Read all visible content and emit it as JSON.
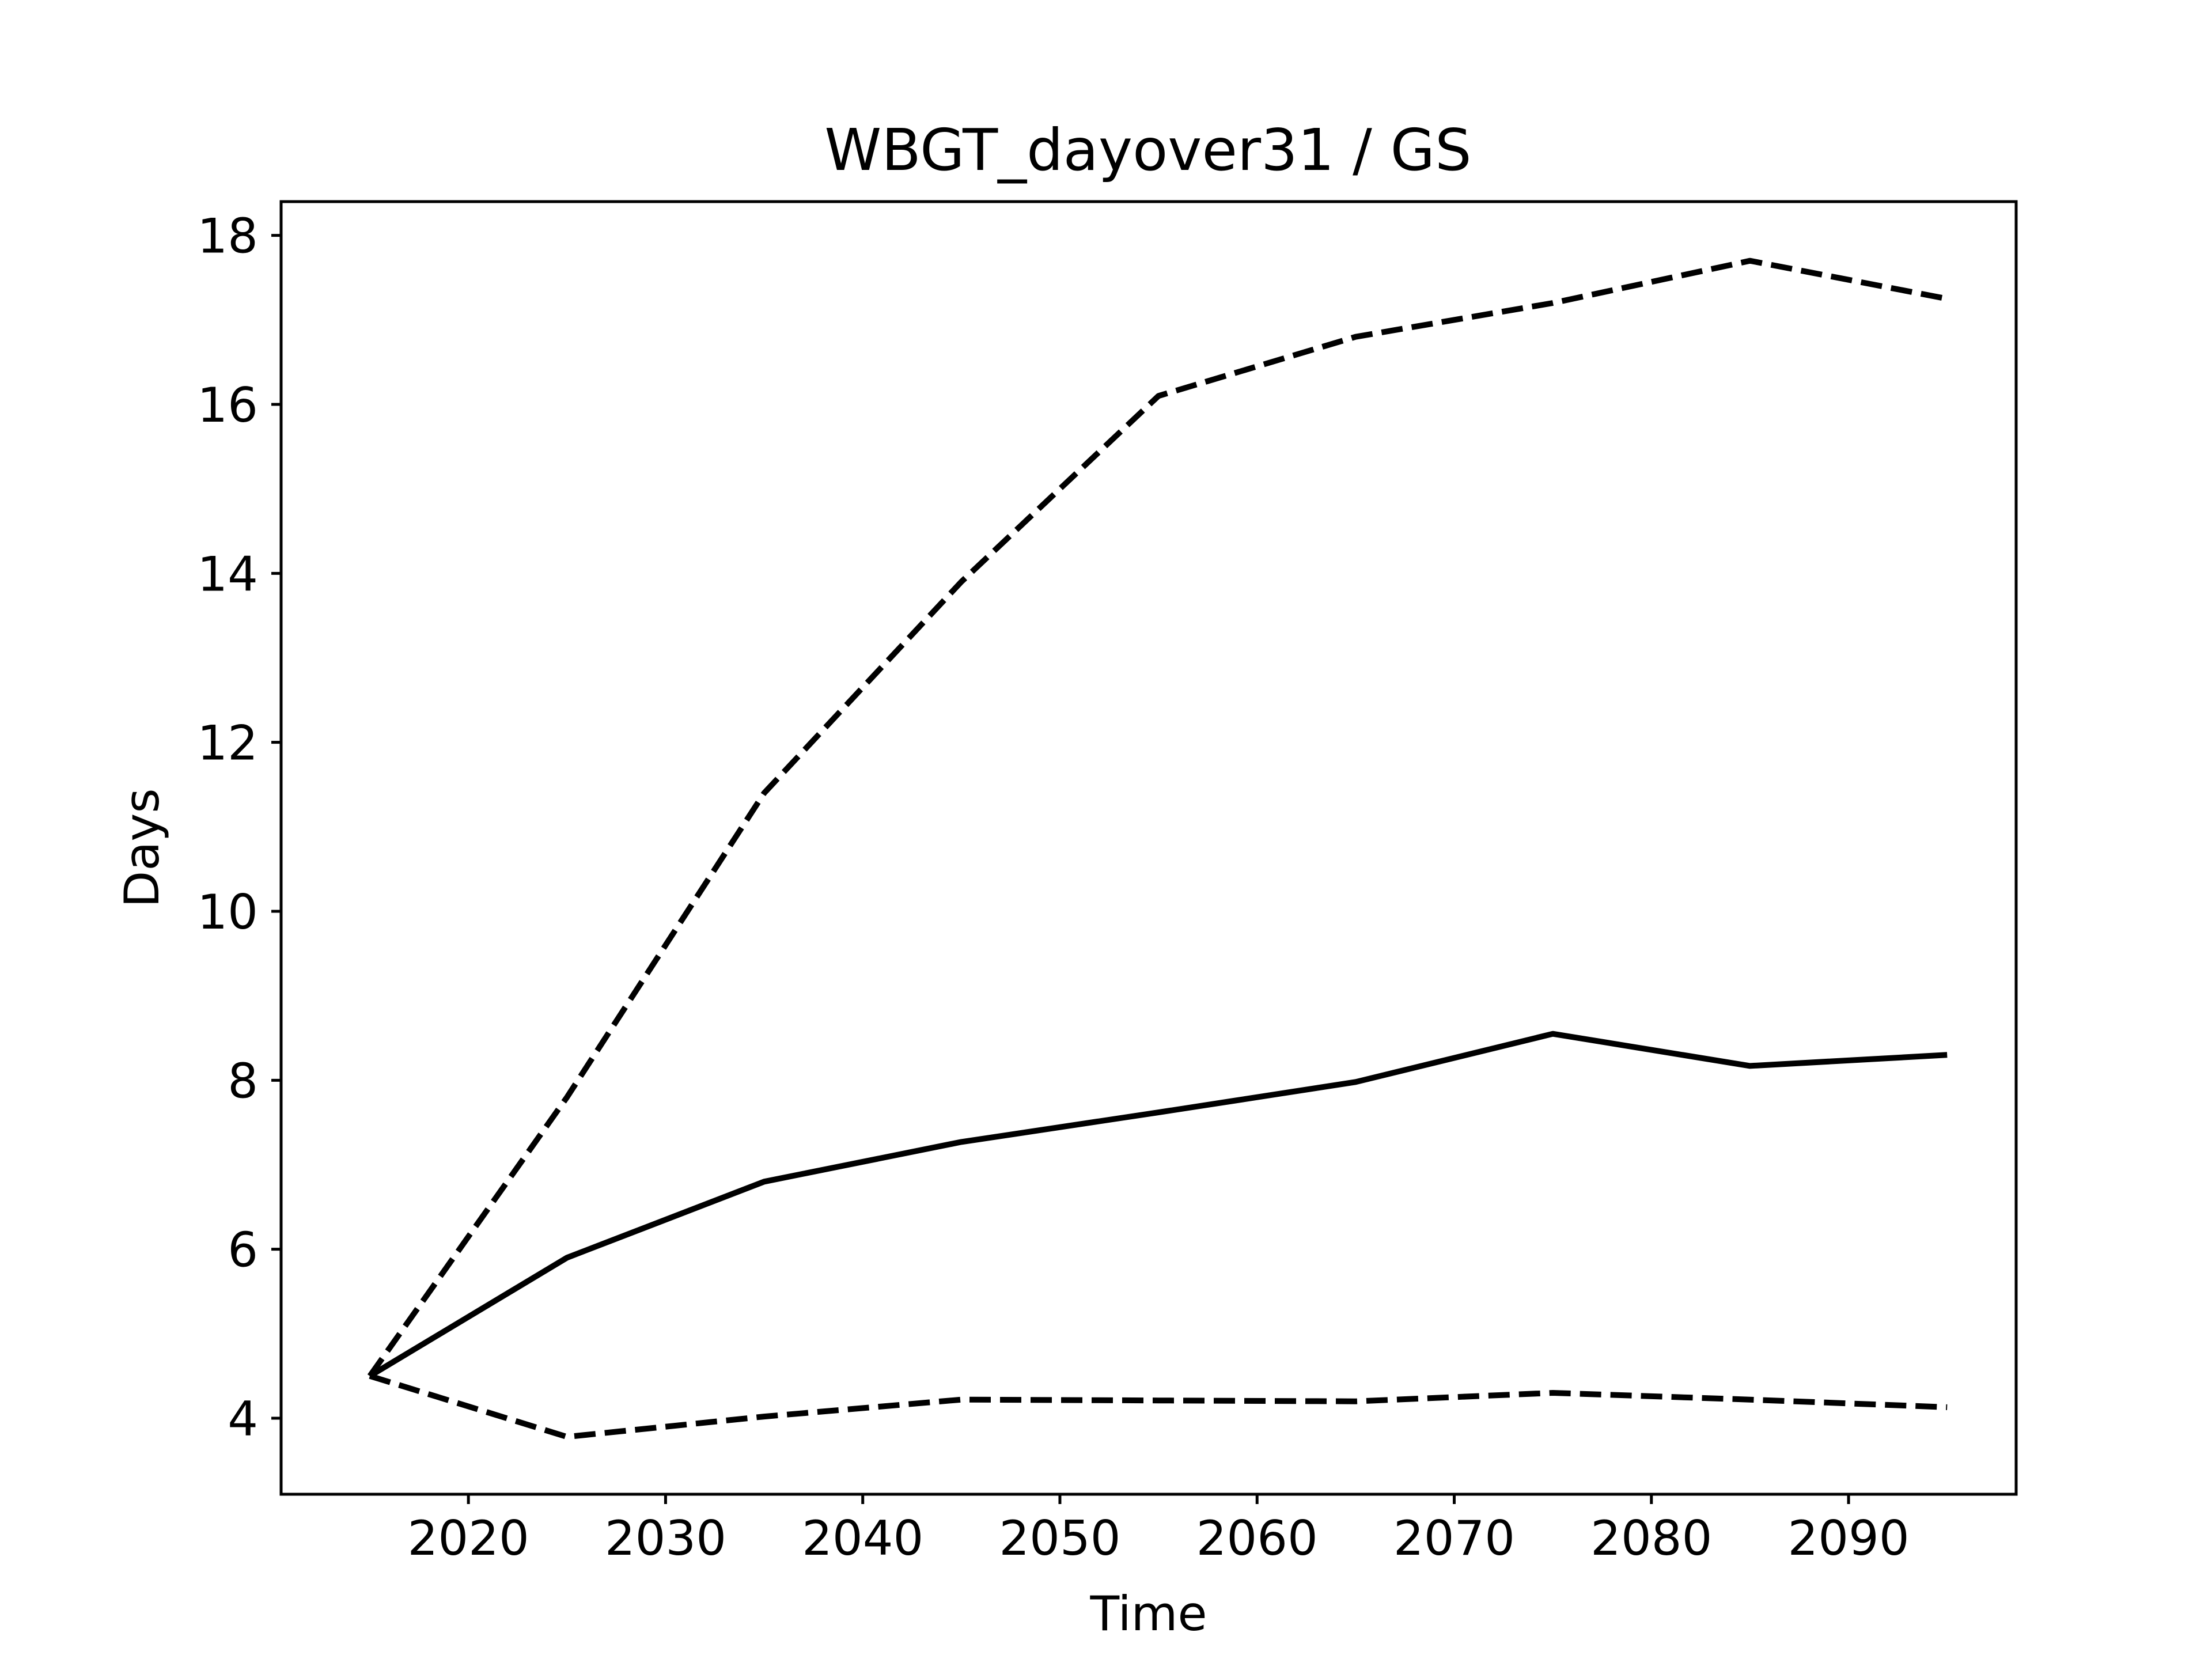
{
  "chart_data": {
    "type": "line",
    "title": "WBGT_dayover31 / GS",
    "xlabel": "Time",
    "ylabel": "Days",
    "xlim": [
      2010.5,
      2098.5
    ],
    "ylim": [
      3.1,
      18.4
    ],
    "x": [
      2015,
      2025,
      2035,
      2045,
      2055,
      2065,
      2075,
      2085,
      2095
    ],
    "xticks": [
      2020,
      2030,
      2040,
      2050,
      2060,
      2070,
      2080,
      2090
    ],
    "yticks": [
      4,
      6,
      8,
      10,
      12,
      14,
      16,
      18
    ],
    "grid": false,
    "series": [
      {
        "style": "dashed",
        "values": [
          4.5,
          7.8,
          11.4,
          13.9,
          16.1,
          16.8,
          17.2,
          17.7,
          17.25
        ]
      },
      {
        "style": "solid",
        "values": [
          4.5,
          5.9,
          6.8,
          7.27,
          7.62,
          7.98,
          8.55,
          8.17,
          8.3
        ]
      },
      {
        "style": "dashed",
        "values": [
          4.5,
          3.78,
          4.02,
          4.22,
          4.21,
          4.2,
          4.3,
          4.22,
          4.13
        ]
      }
    ],
    "colors": {
      "line": "#000000",
      "background": "#ffffff"
    }
  }
}
